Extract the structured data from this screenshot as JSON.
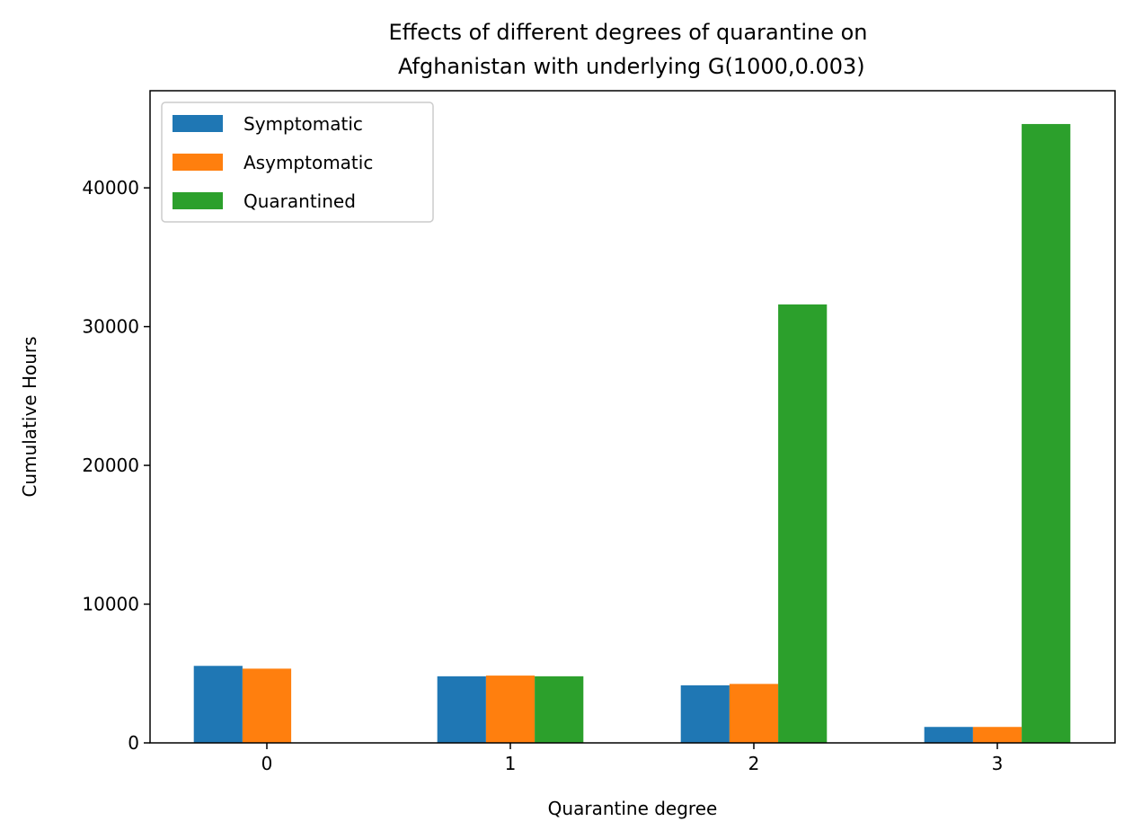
{
  "chart_data": {
    "type": "bar",
    "title_lines": [
      "Effects of different degrees of quarantine on",
      " Afghanistan with underlying G(1000,0.003)"
    ],
    "xlabel": "Quarantine degree",
    "ylabel": "Cumulative Hours",
    "categories": [
      "0",
      "1",
      "2",
      "3"
    ],
    "x_ticks": [
      "0",
      "1",
      "2",
      "3"
    ],
    "ylim": [
      0,
      47000
    ],
    "y_ticks": [
      0,
      10000,
      20000,
      30000,
      40000
    ],
    "y_tick_labels": [
      "0",
      "10000",
      "20000",
      "30000",
      "40000"
    ],
    "legend_position": "top-left",
    "series": [
      {
        "name": "Symptomatic",
        "color": "#1f77b4",
        "values": [
          5550,
          4800,
          4150,
          1150
        ]
      },
      {
        "name": "Asymptomatic",
        "color": "#ff7f0e",
        "values": [
          5350,
          4850,
          4250,
          1150
        ]
      },
      {
        "name": "Quarantined",
        "color": "#2ca02c",
        "values": [
          0,
          4800,
          31600,
          44600
        ]
      }
    ]
  }
}
